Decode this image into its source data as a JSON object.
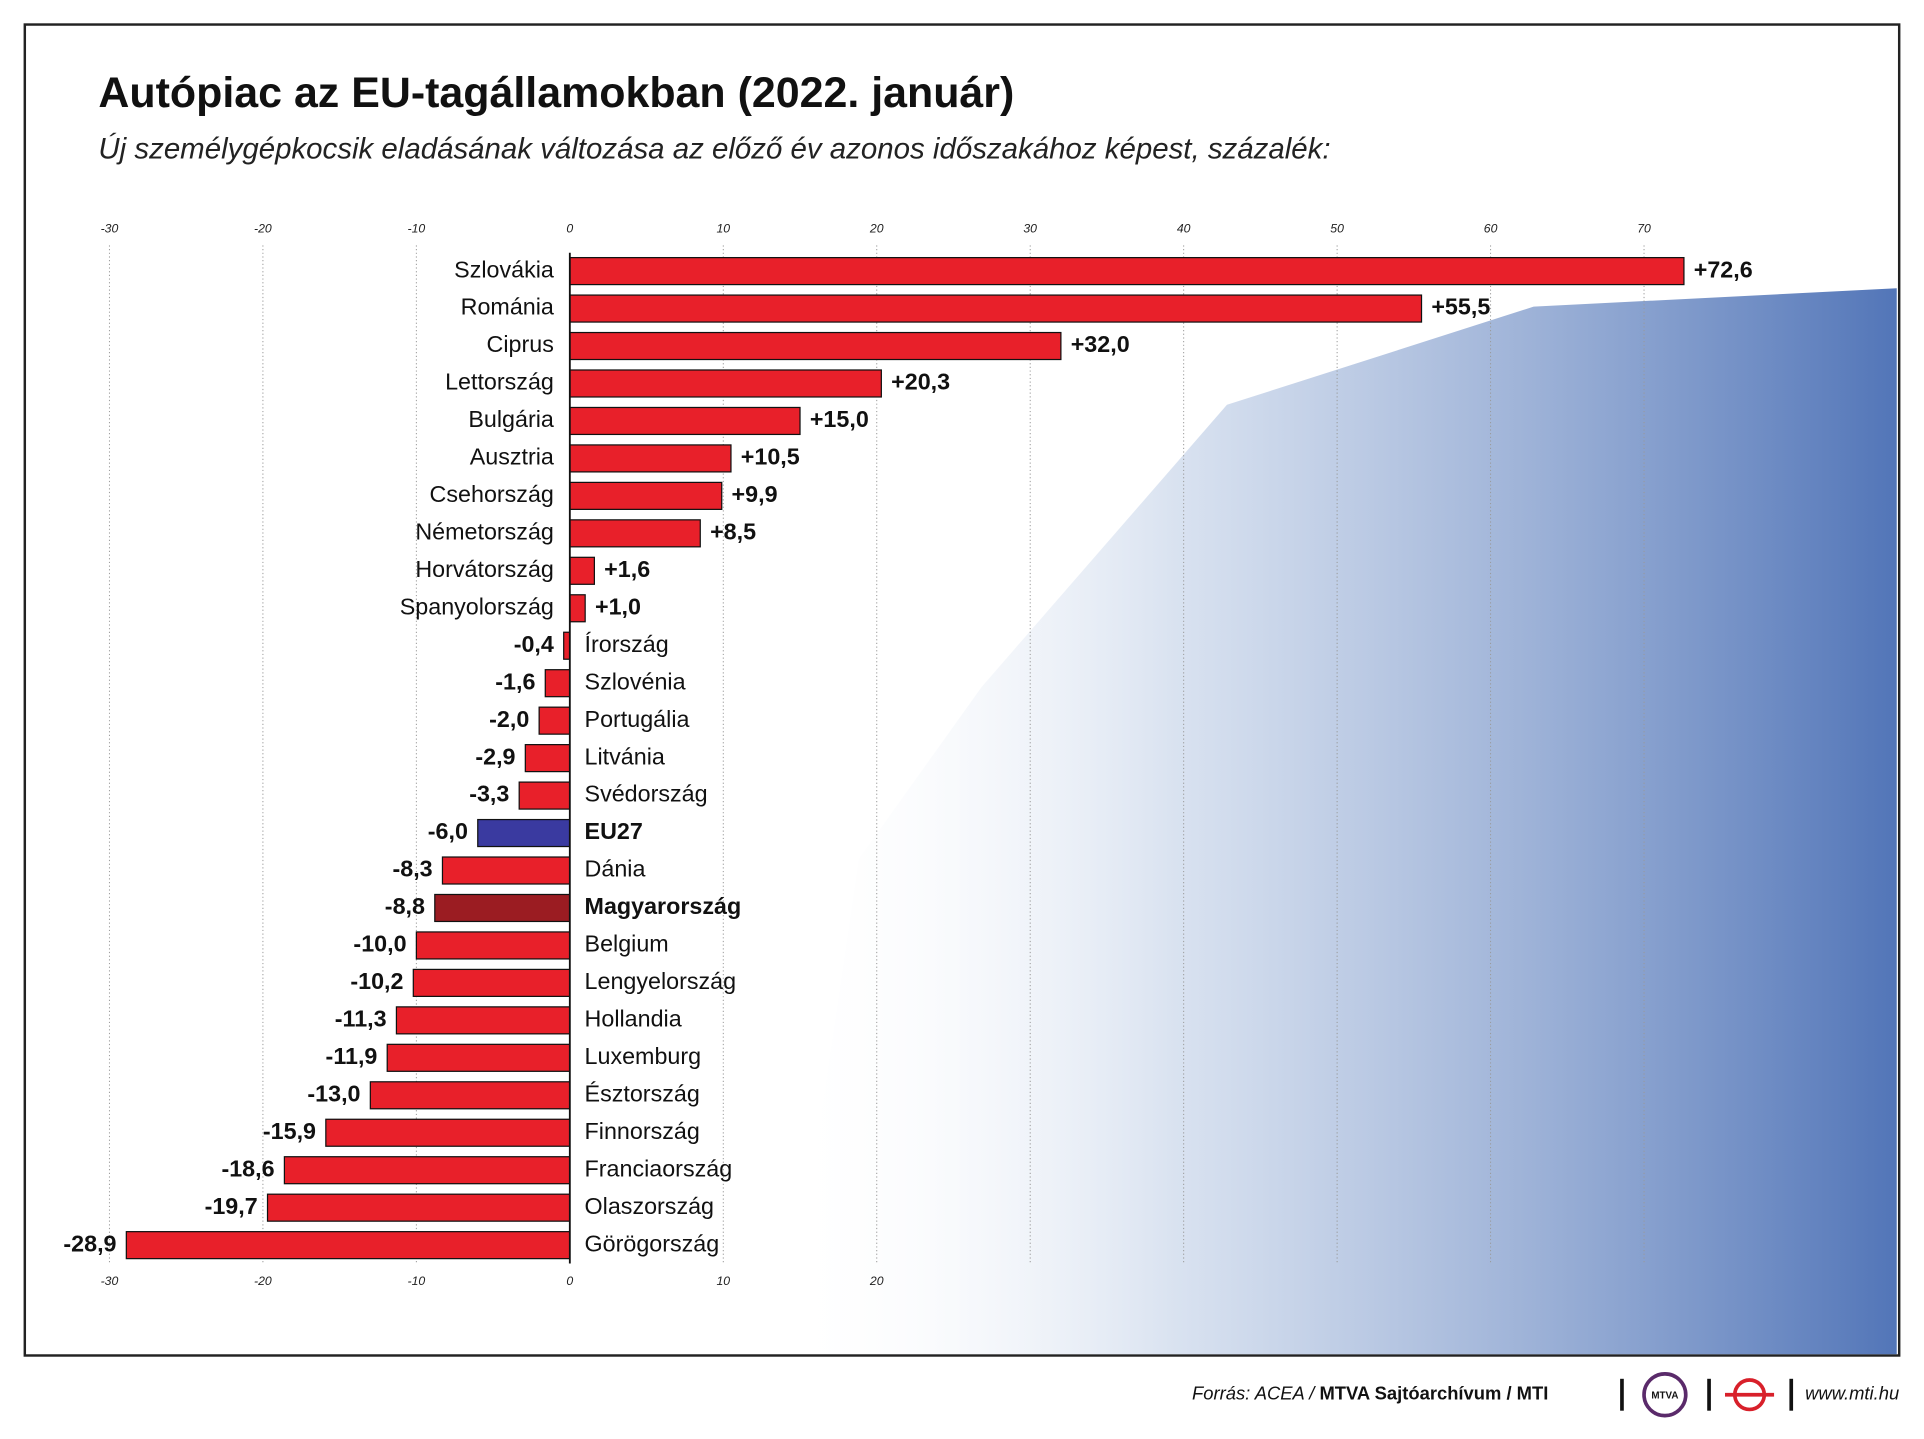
{
  "chart_data": {
    "type": "bar",
    "orientation": "horizontal",
    "title": "Autópiac az EU-tagállamokban (2022. január)",
    "subtitle": "Új személygépkocsik eladásának változása az előző év azonos időszakához képest, százalék:",
    "categories": [
      "Szlovákia",
      "Románia",
      "Ciprus",
      "Lettország",
      "Bulgária",
      "Ausztria",
      "Csehország",
      "Németország",
      "Horvátország",
      "Spanyolország",
      "Írország",
      "Szlovénia",
      "Portugália",
      "Litvánia",
      "Svédország",
      "EU27",
      "Dánia",
      "Magyarország",
      "Belgium",
      "Lengyelország",
      "Hollandia",
      "Luxemburg",
      "Észtország",
      "Finnország",
      "Franciaország",
      "Olaszország",
      "Görögország"
    ],
    "values": [
      72.6,
      55.5,
      32.0,
      20.3,
      15.0,
      10.5,
      9.9,
      8.5,
      1.6,
      1.0,
      -0.4,
      -1.6,
      -2.0,
      -2.9,
      -3.3,
      -6.0,
      -8.3,
      -8.8,
      -10.0,
      -10.2,
      -11.3,
      -11.9,
      -13.0,
      -15.9,
      -18.6,
      -19.7,
      -28.9
    ],
    "value_labels": [
      "+72,6",
      "+55,5",
      "+32,0",
      "+20,3",
      "+15,0",
      "+10,5",
      "+9,9",
      "+8,5",
      "+1,6",
      "+1,0",
      "-0,4",
      "-1,6",
      "-2,0",
      "-2,9",
      "-3,3",
      "-6,0",
      "-8,3",
      "-8,8",
      "-10,0",
      "-10,2",
      "-11,3",
      "-11,9",
      "-13,0",
      "-15,9",
      "-18,6",
      "-19,7",
      "-28,9"
    ],
    "color": "#e8202a",
    "colors": [
      "#e8202a",
      "#e8202a",
      "#e8202a",
      "#e8202a",
      "#e8202a",
      "#e8202a",
      "#e8202a",
      "#e8202a",
      "#e8202a",
      "#e8202a",
      "#e8202a",
      "#e8202a",
      "#e8202a",
      "#e8202a",
      "#e8202a",
      "#3a3aa0",
      "#e8202a",
      "#9b1c22",
      "#e8202a",
      "#e8202a",
      "#e8202a",
      "#e8202a",
      "#e8202a",
      "#e8202a",
      "#e8202a",
      "#e8202a",
      "#e8202a"
    ],
    "xlim": [
      -30,
      70
    ],
    "xticks": [
      -30,
      -20,
      -10,
      0,
      10,
      20,
      30,
      40,
      50,
      60,
      70
    ],
    "xticks_bottom": [
      -30,
      -20,
      -10,
      0,
      10,
      20
    ],
    "grid": true,
    "source": "Forrás: ACEA /",
    "source_bold": "MTVA Sajtóarchívum / MTI",
    "logo_text": "MTVA",
    "website": "www.mti.hu"
  }
}
